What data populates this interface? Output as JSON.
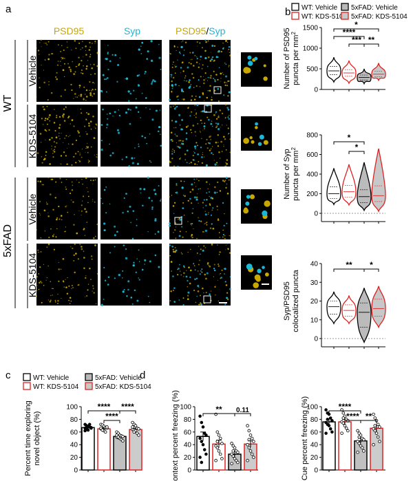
{
  "panel_letters": {
    "a": "a",
    "b": "b",
    "c": "c",
    "d": "d"
  },
  "panel_a": {
    "channel_headers": {
      "psd95": "PSD95",
      "syp": "Syp",
      "merge_psd95": "PSD95",
      "merge_sep": "/",
      "merge_syp": "Syp"
    },
    "genotypes": {
      "wt": "WT",
      "fad": "5xFAD"
    },
    "treatments": {
      "vehicle": "Vehicle",
      "kds": "KDS-5104"
    },
    "colors": {
      "psd95": "#c8a800",
      "syp": "#1ab8d8",
      "image_bg": "#000000"
    }
  },
  "legend_b": {
    "items": [
      {
        "label": "WT: Vehicle",
        "stroke": "#000000",
        "fill": "#ffffff"
      },
      {
        "label": "WT: KDS-5104",
        "stroke": "#e02020",
        "fill": "#ffffff"
      },
      {
        "label": "5xFAD: Vehicle",
        "stroke": "#000000",
        "fill": "#b8b8b8"
      },
      {
        "label": "5xFAD: KDS-5104",
        "stroke": "#e02020",
        "fill": "#c8c8c8"
      }
    ]
  },
  "legend_c": {
    "items": [
      {
        "label": "WT: Vehicle",
        "stroke": "#000000",
        "fill": "#ffffff"
      },
      {
        "label": "WT: KDS-5104",
        "stroke": "#e02020",
        "fill": "#ffffff"
      },
      {
        "label": "5xFAD: Vehicle",
        "stroke": "#000000",
        "fill": "#b8b8b8"
      },
      {
        "label": "5xFAD: KDS-5104",
        "stroke": "#e02020",
        "fill": "#c8c8c8"
      }
    ]
  },
  "chart_data": [
    {
      "type": "violin",
      "panel": "b",
      "ylabel_line1": "Number of PSD95",
      "ylabel_line2": "puncta per mm",
      "ylabel_sup": "2",
      "ylim": [
        0,
        1500
      ],
      "yticks": [
        0,
        500,
        1000,
        1500
      ],
      "zero_line": false,
      "groups": [
        {
          "median": 450,
          "q1": 360,
          "q3": 560,
          "min": 180,
          "max": 780,
          "color": "#000000",
          "fill": "#ffffff"
        },
        {
          "median": 400,
          "q1": 320,
          "q3": 480,
          "min": 150,
          "max": 700,
          "color": "#e02020",
          "fill": "#ffffff"
        },
        {
          "median": 290,
          "q1": 230,
          "q3": 350,
          "min": 140,
          "max": 500,
          "color": "#000000",
          "fill": "#bbbbbb"
        },
        {
          "median": 370,
          "q1": 310,
          "q3": 440,
          "min": 220,
          "max": 640,
          "color": "#e02020",
          "fill": "#c8c8c8"
        }
      ],
      "comparisons": [
        {
          "from": 0,
          "to": 3,
          "label": "*",
          "level": 3
        },
        {
          "from": 0,
          "to": 2,
          "label": "****",
          "level": 2
        },
        {
          "from": 1,
          "to": 2,
          "label": "***",
          "level": 1
        },
        {
          "from": 2,
          "to": 3,
          "label": "**",
          "level": 1
        }
      ]
    },
    {
      "type": "violin",
      "panel": "b",
      "ylabel_line1": "Number of Syp",
      "ylabel_line2": "puncta per mm",
      "ylabel_sup": "2",
      "ylim": [
        0,
        800
      ],
      "yticks": [
        0,
        200,
        400,
        600,
        800
      ],
      "zero_line": true,
      "groups": [
        {
          "median": 200,
          "q1": 150,
          "q3": 270,
          "min": 90,
          "max": 460,
          "color": "#000000",
          "fill": "#ffffff"
        },
        {
          "median": 220,
          "q1": 165,
          "q3": 285,
          "min": 85,
          "max": 500,
          "color": "#e02020",
          "fill": "#ffffff"
        },
        {
          "median": 170,
          "q1": 110,
          "q3": 240,
          "min": 30,
          "max": 520,
          "color": "#000000",
          "fill": "#bbbbbb"
        },
        {
          "median": 180,
          "q1": 120,
          "q3": 280,
          "min": 20,
          "max": 660,
          "color": "#e02020",
          "fill": "#c8c8c8"
        }
      ],
      "comparisons": [
        {
          "from": 0,
          "to": 2,
          "label": "*",
          "level": 2
        },
        {
          "from": 1,
          "to": 2,
          "label": "*",
          "level": 1
        }
      ]
    },
    {
      "type": "violin",
      "panel": "b",
      "ylabel_line1": "Syp/PSD95",
      "ylabel_line2": "colocalized puncta",
      "ylabel_sup": "",
      "ylim": [
        0,
        40
      ],
      "yticks": [
        0,
        10,
        20,
        30,
        40
      ],
      "zero_line": true,
      "groups": [
        {
          "median": 17,
          "q1": 13,
          "q3": 20,
          "min": 8,
          "max": 25,
          "color": "#000000",
          "fill": "#ffffff"
        },
        {
          "median": 15,
          "q1": 12,
          "q3": 18,
          "min": 8,
          "max": 23,
          "color": "#e02020",
          "fill": "#ffffff"
        },
        {
          "median": 14,
          "q1": 6,
          "q3": 19,
          "min": -2,
          "max": 27,
          "color": "#000000",
          "fill": "#bbbbbb"
        },
        {
          "median": 16,
          "q1": 12,
          "q3": 21,
          "min": 6,
          "max": 28,
          "color": "#e02020",
          "fill": "#c8c8c8"
        }
      ],
      "comparisons": [
        {
          "from": 0,
          "to": 2,
          "label": "**",
          "level": 1
        },
        {
          "from": 2,
          "to": 3,
          "label": "*",
          "level": 1
        }
      ]
    },
    {
      "type": "bar",
      "panel": "c",
      "ylabel_line1": "Percent time exploring",
      "ylabel_line2": "novel object (%)",
      "ylim": [
        0,
        100
      ],
      "yticks": [
        0,
        20,
        40,
        60,
        80,
        100
      ],
      "groups": [
        {
          "mean": 67,
          "sem": 2,
          "color": "#000000",
          "fill": "#ffffff",
          "points": [
            72,
            70,
            69,
            68,
            67,
            66,
            65,
            63,
            72,
            66,
            62,
            68
          ]
        },
        {
          "mean": 65,
          "sem": 2,
          "color": "#e02020",
          "fill": "#ffffff",
          "points": [
            72,
            71,
            69,
            67,
            66,
            65,
            64,
            62,
            60,
            68,
            66,
            63
          ]
        },
        {
          "mean": 53,
          "sem": 2,
          "color": "#000000",
          "fill": "#c0c0c0",
          "points": [
            60,
            58,
            55,
            54,
            53,
            52,
            51,
            50,
            48,
            46,
            55,
            52
          ]
        },
        {
          "mean": 64,
          "sem": 2,
          "color": "#e02020",
          "fill": "#cccccc",
          "points": [
            75,
            72,
            70,
            66,
            65,
            64,
            63,
            62,
            58,
            55,
            68,
            60
          ]
        }
      ],
      "comparisons": [
        {
          "from": 0,
          "to": 2,
          "label": "****",
          "level": 2
        },
        {
          "from": 2,
          "to": 3,
          "label": "****",
          "level": 2
        },
        {
          "from": 1,
          "to": 2,
          "label": "****",
          "level": 1
        }
      ]
    },
    {
      "type": "bar",
      "panel": "d",
      "ylabel_line1": "Context percent freezing (%)",
      "ylabel_line2": "",
      "ylim": [
        0,
        100
      ],
      "yticks": [
        0,
        20,
        40,
        60,
        80,
        100
      ],
      "groups": [
        {
          "mean": 53,
          "sem": 7,
          "color": "#000000",
          "fill": "#ffffff",
          "points": [
            85,
            75,
            68,
            58,
            55,
            50,
            45,
            40,
            32,
            25,
            20,
            12
          ]
        },
        {
          "mean": 41,
          "sem": 6,
          "color": "#e02020",
          "fill": "#ffffff",
          "points": [
            88,
            60,
            55,
            50,
            42,
            38,
            35,
            30,
            25,
            18,
            15,
            45
          ]
        },
        {
          "mean": 25,
          "sem": 4,
          "color": "#000000",
          "fill": "#c0c0c0",
          "points": [
            42,
            38,
            35,
            30,
            28,
            25,
            22,
            18,
            15,
            12,
            10,
            30
          ]
        },
        {
          "mean": 41,
          "sem": 5,
          "color": "#e02020",
          "fill": "#cccccc",
          "points": [
            70,
            62,
            55,
            50,
            45,
            40,
            35,
            30,
            25,
            20,
            15,
            48
          ]
        }
      ],
      "comparisons": [
        {
          "from": 0,
          "to": 2,
          "label": "**",
          "level": 1
        },
        {
          "from": 2,
          "to": 3,
          "label": "0.11",
          "level": 1
        }
      ]
    },
    {
      "type": "bar",
      "panel": "d",
      "ylabel_line1": "Cue percent freezing (%)",
      "ylabel_line2": "",
      "ylim": [
        0,
        100
      ],
      "yticks": [
        0,
        20,
        40,
        60,
        80,
        100
      ],
      "groups": [
        {
          "mean": 76,
          "sem": 5,
          "color": "#000000",
          "fill": "#ffffff",
          "points": [
            95,
            90,
            88,
            82,
            78,
            75,
            72,
            70,
            65,
            60,
            58,
            80
          ]
        },
        {
          "mean": 76,
          "sem": 4,
          "color": "#e02020",
          "fill": "#ffffff",
          "points": [
            95,
            90,
            85,
            80,
            78,
            76,
            74,
            70,
            66,
            62,
            58,
            82
          ]
        },
        {
          "mean": 46,
          "sem": 4,
          "color": "#000000",
          "fill": "#c0c0c0",
          "points": [
            62,
            58,
            55,
            50,
            48,
            45,
            42,
            38,
            35,
            30,
            28,
            52
          ]
        },
        {
          "mean": 66,
          "sem": 5,
          "color": "#e02020",
          "fill": "#cccccc",
          "points": [
            88,
            82,
            78,
            72,
            68,
            65,
            62,
            58,
            52,
            45,
            40,
            70
          ]
        }
      ],
      "comparisons": [
        {
          "from": 0,
          "to": 2,
          "label": "****",
          "level": 2
        },
        {
          "from": 1,
          "to": 2,
          "label": "****",
          "level": 1
        },
        {
          "from": 2,
          "to": 3,
          "label": "**",
          "level": 1
        }
      ]
    }
  ]
}
